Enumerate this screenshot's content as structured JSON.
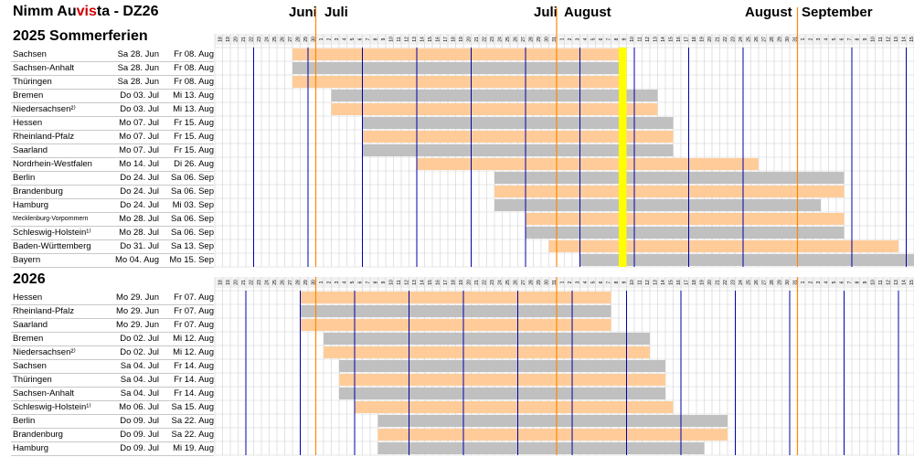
{
  "header": {
    "title_prefix": "Nimm Au",
    "title_highlight": "vis",
    "title_suffix": "ta - DZ26",
    "months": [
      "Juni",
      "Juli",
      "Juli",
      "August",
      "August",
      "September"
    ]
  },
  "colors": {
    "orange": "#ffcc99",
    "gray": "#c0c0c0",
    "today": "#ffff00",
    "sunday": "#0000aa",
    "month_line": "#ff8800",
    "grid": "#d0d0d0"
  },
  "chart_data": [
    {
      "type": "gantt",
      "title": "2025 Sommerferien",
      "axis_days": [
        "18",
        "19",
        "20",
        "21",
        "22",
        "23",
        "24",
        "25",
        "26",
        "27",
        "28",
        "29",
        "30",
        "1",
        "2",
        "3",
        "4",
        "5",
        "6",
        "7",
        "8",
        "9",
        "10",
        "11",
        "12",
        "13",
        "14",
        "15",
        "16",
        "17",
        "18",
        "19",
        "20",
        "21",
        "22",
        "23",
        "24",
        "25",
        "26",
        "27",
        "28",
        "29",
        "30",
        "31",
        "1",
        "2",
        "3",
        "4",
        "5",
        "6",
        "7",
        "8",
        "9",
        "10",
        "11",
        "12",
        "13",
        "14",
        "15",
        "16",
        "17",
        "18",
        "19",
        "20",
        "21",
        "22",
        "23",
        "24",
        "25",
        "26",
        "27",
        "28",
        "29",
        "30",
        "31",
        "1",
        "2",
        "3",
        "4",
        "5",
        "6",
        "7",
        "8",
        "9",
        "10",
        "11",
        "12",
        "13",
        "14",
        "15"
      ],
      "axis_start": "2025-06-18",
      "axis_end": "2025-09-15",
      "highlight_date": "2025-08-09",
      "rows": [
        {
          "state": "Sachsen",
          "start_label": "Sa 28. Jun",
          "end_label": "Fr 08. Aug",
          "start": "2025-06-28",
          "end": "2025-08-08",
          "color": "orange"
        },
        {
          "state": "Sachsen-Anhalt",
          "start_label": "Sa 28. Jun",
          "end_label": "Fr 08. Aug",
          "start": "2025-06-28",
          "end": "2025-08-08",
          "color": "gray"
        },
        {
          "state": "Thüringen",
          "start_label": "Sa 28. Jun",
          "end_label": "Fr 08. Aug",
          "start": "2025-06-28",
          "end": "2025-08-08",
          "color": "orange"
        },
        {
          "state": "Bremen",
          "start_label": "Do 03. Jul",
          "end_label": "Mi 13. Aug",
          "start": "2025-07-03",
          "end": "2025-08-13",
          "color": "gray"
        },
        {
          "state": "Niedersachsen²⁾",
          "start_label": "Do 03. Jul",
          "end_label": "Mi 13. Aug",
          "start": "2025-07-03",
          "end": "2025-08-13",
          "color": "orange"
        },
        {
          "state": "Hessen",
          "start_label": "Mo 07. Jul",
          "end_label": "Fr 15. Aug",
          "start": "2025-07-07",
          "end": "2025-08-15",
          "color": "gray"
        },
        {
          "state": "Rheinland-Pfalz",
          "start_label": "Mo 07. Jul",
          "end_label": "Fr 15. Aug",
          "start": "2025-07-07",
          "end": "2025-08-15",
          "color": "orange"
        },
        {
          "state": "Saarland",
          "start_label": "Mo 07. Jul",
          "end_label": "Fr 15. Aug",
          "start": "2025-07-07",
          "end": "2025-08-15",
          "color": "gray"
        },
        {
          "state": "Nordrhein-Westfalen",
          "start_label": "Mo 14. Jul",
          "end_label": "Di 26. Aug",
          "start": "2025-07-14",
          "end": "2025-08-26",
          "color": "orange"
        },
        {
          "state": "Berlin",
          "start_label": "Do 24. Jul",
          "end_label": "Sa 06. Sep",
          "start": "2025-07-24",
          "end": "2025-09-06",
          "color": "gray"
        },
        {
          "state": "Brandenburg",
          "start_label": "Do 24. Jul",
          "end_label": "Sa 06. Sep",
          "start": "2025-07-24",
          "end": "2025-09-06",
          "color": "orange"
        },
        {
          "state": "Hamburg",
          "start_label": "Do 24. Jul",
          "end_label": "Mi 03. Sep",
          "start": "2025-07-24",
          "end": "2025-09-03",
          "color": "gray"
        },
        {
          "state": "Mecklenburg-Vorpommern",
          "small": true,
          "start_label": "Mo 28. Jul",
          "end_label": "Sa 06. Sep",
          "start": "2025-07-28",
          "end": "2025-09-06",
          "color": "orange"
        },
        {
          "state": "Schleswig-Holstein¹⁾",
          "start_label": "Mo 28. Jul",
          "end_label": "Sa 06. Sep",
          "start": "2025-07-28",
          "end": "2025-09-06",
          "color": "gray"
        },
        {
          "state": "Baden-Württemberg",
          "start_label": "Do 31. Jul",
          "end_label": "Sa 13. Sep",
          "start": "2025-07-31",
          "end": "2025-09-13",
          "color": "orange"
        },
        {
          "state": "Bayern",
          "start_label": "Mo 04. Aug",
          "end_label": "Mo 15. Sep",
          "start": "2025-08-04",
          "end": "2025-09-15",
          "color": "gray"
        }
      ]
    },
    {
      "type": "gantt",
      "title": "2026",
      "axis_days": [
        "18",
        "19",
        "20",
        "21",
        "22",
        "23",
        "24",
        "25",
        "26",
        "27",
        "28",
        "29",
        "30",
        "1",
        "2",
        "3",
        "4",
        "5",
        "6",
        "7",
        "8",
        "9",
        "10",
        "11",
        "12",
        "13",
        "14",
        "15",
        "16",
        "17",
        "18",
        "19",
        "20",
        "21",
        "22",
        "23",
        "24",
        "25",
        "26",
        "27",
        "28",
        "29",
        "30",
        "31",
        "1",
        "2",
        "3",
        "4",
        "5",
        "6",
        "7",
        "8",
        "9",
        "10",
        "11",
        "12",
        "13",
        "14",
        "15",
        "16",
        "17",
        "18",
        "19",
        "20",
        "21",
        "22",
        "23",
        "24",
        "25",
        "26",
        "27",
        "28",
        "29",
        "30",
        "31",
        "1",
        "2",
        "3",
        "4",
        "5",
        "6",
        "7",
        "8",
        "9",
        "10",
        "11",
        "12",
        "13",
        "14",
        "15"
      ],
      "axis_start": "2026-06-18",
      "axis_end": "2026-09-15",
      "rows": [
        {
          "state": "Hessen",
          "start_label": "Mo 29. Jun",
          "end_label": "Fr 07. Aug",
          "start": "2026-06-29",
          "end": "2026-08-07",
          "color": "orange"
        },
        {
          "state": "Rheinland-Pfalz",
          "start_label": "Mo 29. Jun",
          "end_label": "Fr 07. Aug",
          "start": "2026-06-29",
          "end": "2026-08-07",
          "color": "gray"
        },
        {
          "state": "Saarland",
          "start_label": "Mo 29. Jun",
          "end_label": "Fr 07. Aug",
          "start": "2026-06-29",
          "end": "2026-08-07",
          "color": "orange"
        },
        {
          "state": "Bremen",
          "start_label": "Do 02. Jul",
          "end_label": "Mi 12. Aug",
          "start": "2026-07-02",
          "end": "2026-08-12",
          "color": "gray"
        },
        {
          "state": "Niedersachsen²⁾",
          "start_label": "Do 02. Jul",
          "end_label": "Mi 12. Aug",
          "start": "2026-07-02",
          "end": "2026-08-12",
          "color": "orange"
        },
        {
          "state": "Sachsen",
          "start_label": "Sa 04. Jul",
          "end_label": "Fr 14. Aug",
          "start": "2026-07-04",
          "end": "2026-08-14",
          "color": "gray"
        },
        {
          "state": "Thüringen",
          "start_label": "Sa 04. Jul",
          "end_label": "Fr 14. Aug",
          "start": "2026-07-04",
          "end": "2026-08-14",
          "color": "orange"
        },
        {
          "state": "Sachsen-Anhalt",
          "start_label": "Sa 04. Jul",
          "end_label": "Fr 14. Aug",
          "start": "2026-07-04",
          "end": "2026-08-14",
          "color": "gray"
        },
        {
          "state": "Schleswig-Holstein¹⁾",
          "start_label": "Mo 06. Jul",
          "end_label": "Sa 15. Aug",
          "start": "2026-07-06",
          "end": "2026-08-15",
          "color": "orange"
        },
        {
          "state": "Berlin",
          "start_label": "Do 09. Jul",
          "end_label": "Sa 22. Aug",
          "start": "2026-07-09",
          "end": "2026-08-22",
          "color": "gray"
        },
        {
          "state": "Brandenburg",
          "start_label": "Do 09. Jul",
          "end_label": "Sa 22. Aug",
          "start": "2026-07-09",
          "end": "2026-08-22",
          "color": "orange"
        },
        {
          "state": "Hamburg",
          "start_label": "Do 09. Jul",
          "end_label": "Mi 19. Aug",
          "start": "2026-07-09",
          "end": "2026-08-19",
          "color": "gray"
        }
      ]
    }
  ]
}
